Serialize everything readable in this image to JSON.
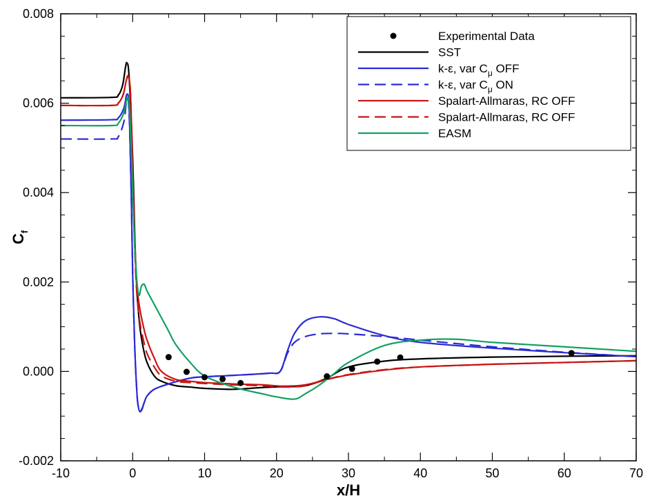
{
  "chart_data": {
    "type": "line",
    "title": "",
    "xlabel": "x/H",
    "ylabel_main": "C",
    "ylabel_sub": "f",
    "xlim": [
      -10,
      70
    ],
    "ylim": [
      -0.002,
      0.008
    ],
    "xticks": [
      -10,
      0,
      10,
      20,
      30,
      40,
      50,
      60,
      70
    ],
    "yticks": [
      -0.002,
      0.0,
      0.002,
      0.004,
      0.006,
      0.008
    ],
    "xtick_labels": [
      "-10",
      "0",
      "10",
      "20",
      "30",
      "40",
      "50",
      "60",
      "70"
    ],
    "ytick_labels": [
      "-0.002",
      "0.000",
      "0.002",
      "0.004",
      "0.006",
      "0.008"
    ],
    "grid": false,
    "legend_position": "top-right",
    "legend": [
      {
        "main": "Experimental Data",
        "sub": "",
        "suffix": ""
      },
      {
        "main": "SST",
        "sub": "",
        "suffix": ""
      },
      {
        "main": "k-ε, var C",
        "sub": "μ",
        "suffix": " OFF"
      },
      {
        "main": "k-ε, var C",
        "sub": "μ",
        "suffix": " ON"
      },
      {
        "main": "Spalart-Allmaras, RC OFF",
        "sub": "",
        "suffix": ""
      },
      {
        "main": "Spalart-Allmaras, RC OFF",
        "sub": "",
        "suffix": ""
      },
      {
        "main": "EASM",
        "sub": "",
        "suffix": ""
      }
    ],
    "experimental": {
      "x": [
        5,
        7.5,
        10,
        12.5,
        15,
        27,
        30.5,
        34,
        37.2,
        61
      ],
      "y": [
        0.00032,
        -1e-05,
        -0.00013,
        -0.00017,
        -0.00026,
        -0.00011,
        6e-05,
        0.00022,
        0.00031,
        0.00041
      ],
      "color": "#000000"
    },
    "series": [
      {
        "color": "#000000",
        "dash": "solid",
        "x": [
          -10,
          -3,
          -2,
          -1.4,
          -1,
          -0.8,
          -0.5,
          0,
          0.3,
          0.6,
          1,
          1.5,
          2,
          3,
          4,
          6,
          8,
          10,
          14,
          18,
          21,
          24,
          27,
          30,
          35,
          40,
          50,
          60,
          70
        ],
        "y": [
          0.00612,
          0.00613,
          0.00618,
          0.0064,
          0.0068,
          0.0069,
          0.0066,
          0.0048,
          0.003,
          0.0018,
          0.001,
          0.0005,
          0.0002,
          -0.0001,
          -0.00022,
          -0.00032,
          -0.00035,
          -0.00038,
          -0.0004,
          -0.00036,
          -0.00034,
          -0.00032,
          -0.00015,
          0.0001,
          0.00023,
          0.00028,
          0.00032,
          0.00034,
          0.00035
        ]
      },
      {
        "color": "#2a2ad6",
        "dash": "solid",
        "x": [
          -10,
          -3,
          -2,
          -1.2,
          -0.8,
          -0.5,
          -0.2,
          0,
          0.3,
          0.6,
          0.8,
          1.0,
          1.3,
          1.6,
          2,
          3,
          5,
          8,
          10,
          15,
          19,
          20.5,
          21.5,
          22.5,
          24,
          26,
          28,
          30,
          35,
          40,
          50,
          60,
          70
        ],
        "y": [
          0.00562,
          0.00563,
          0.00567,
          0.0059,
          0.0062,
          0.0059,
          0.004,
          0.0022,
          0.0005,
          -0.0005,
          -0.0008,
          -0.0009,
          -0.00085,
          -0.0007,
          -0.00055,
          -0.0004,
          -0.00028,
          -0.00015,
          -0.00012,
          -8e-05,
          -4e-05,
          0.0,
          0.00045,
          0.00085,
          0.00113,
          0.00122,
          0.00118,
          0.00105,
          0.0008,
          0.00065,
          0.00052,
          0.00042,
          0.00033
        ]
      },
      {
        "color": "#2a2ad6",
        "dash": "dash",
        "x": [
          -10,
          -3,
          -2,
          -1.2,
          -0.8,
          -0.5,
          -0.2,
          0,
          0.3,
          0.6,
          0.8,
          1.0,
          1.3,
          1.6,
          2,
          3,
          5,
          8,
          10,
          15,
          19,
          20.5,
          21.5,
          22.5,
          24,
          26,
          28,
          30,
          35,
          40,
          50,
          60,
          70
        ],
        "y": [
          0.0052,
          0.0052,
          0.00525,
          0.0056,
          0.0061,
          0.0058,
          0.004,
          0.0022,
          0.0005,
          -0.0005,
          -0.0008,
          -0.00088,
          -0.00083,
          -0.0007,
          -0.00055,
          -0.0004,
          -0.00028,
          -0.00015,
          -0.00012,
          -8e-05,
          -4e-05,
          0.0,
          0.0004,
          0.00065,
          0.00078,
          0.00084,
          0.00085,
          0.00084,
          0.00078,
          0.0007,
          0.00055,
          0.00043,
          0.00033
        ]
      },
      {
        "color": "#c81414",
        "dash": "solid",
        "x": [
          -10,
          -3,
          -2,
          -1.3,
          -0.9,
          -0.6,
          -0.3,
          0,
          0.3,
          0.6,
          1,
          1.5,
          2,
          3,
          4,
          6,
          8,
          10,
          14,
          18,
          21,
          24,
          27,
          30,
          35,
          40,
          50,
          60,
          70
        ],
        "y": [
          0.00595,
          0.00595,
          0.006,
          0.0062,
          0.0065,
          0.0066,
          0.0062,
          0.0045,
          0.0028,
          0.0019,
          0.0014,
          0.001,
          0.0007,
          0.0003,
          0.0,
          -0.00018,
          -0.00022,
          -0.00025,
          -0.00028,
          -0.0003,
          -0.00033,
          -0.0003,
          -0.00018,
          -8e-05,
          3e-05,
          0.0001,
          0.00016,
          0.0002,
          0.00024
        ]
      },
      {
        "color": "#c81414",
        "dash": "dash",
        "x": [
          -10,
          -3,
          -2,
          -1.3,
          -0.9,
          -0.6,
          -0.3,
          0,
          0.3,
          0.6,
          1,
          1.5,
          2,
          3,
          4,
          6,
          8,
          10,
          14,
          18,
          21,
          24,
          27,
          30,
          35,
          40,
          50,
          60,
          70
        ],
        "y": [
          0.00595,
          0.00595,
          0.006,
          0.0062,
          0.0065,
          0.0066,
          0.0062,
          0.0045,
          0.0027,
          0.0017,
          0.0011,
          0.0007,
          0.0004,
          0.0001,
          -0.0001,
          -0.00022,
          -0.00025,
          -0.00027,
          -0.0003,
          -0.00032,
          -0.00035,
          -0.00032,
          -0.00018,
          -7e-05,
          4e-05,
          0.0001,
          0.00016,
          0.0002,
          0.00024
        ]
      },
      {
        "color": "#12a060",
        "dash": "solid",
        "x": [
          -10,
          -3,
          -2,
          -1.2,
          -0.8,
          -0.5,
          -0.2,
          0,
          0.3,
          0.6,
          0.9,
          1.2,
          1.6,
          2,
          3,
          4,
          5,
          6,
          8,
          10,
          14,
          18,
          20,
          22.5,
          24,
          26,
          28,
          30,
          35,
          40,
          45,
          50,
          60,
          70
        ],
        "y": [
          0.0055,
          0.0055,
          0.00555,
          0.0058,
          0.0061,
          0.006,
          0.005,
          0.004,
          0.0028,
          0.002,
          0.0017,
          0.0019,
          0.00195,
          0.0018,
          0.0015,
          0.0012,
          0.0009,
          0.0006,
          0.0002,
          -0.0001,
          -0.00035,
          -0.0005,
          -0.00057,
          -0.00062,
          -0.0005,
          -0.0003,
          -5e-05,
          0.0002,
          0.00058,
          0.0007,
          0.00072,
          0.00065,
          0.00055,
          0.00045
        ]
      }
    ]
  }
}
